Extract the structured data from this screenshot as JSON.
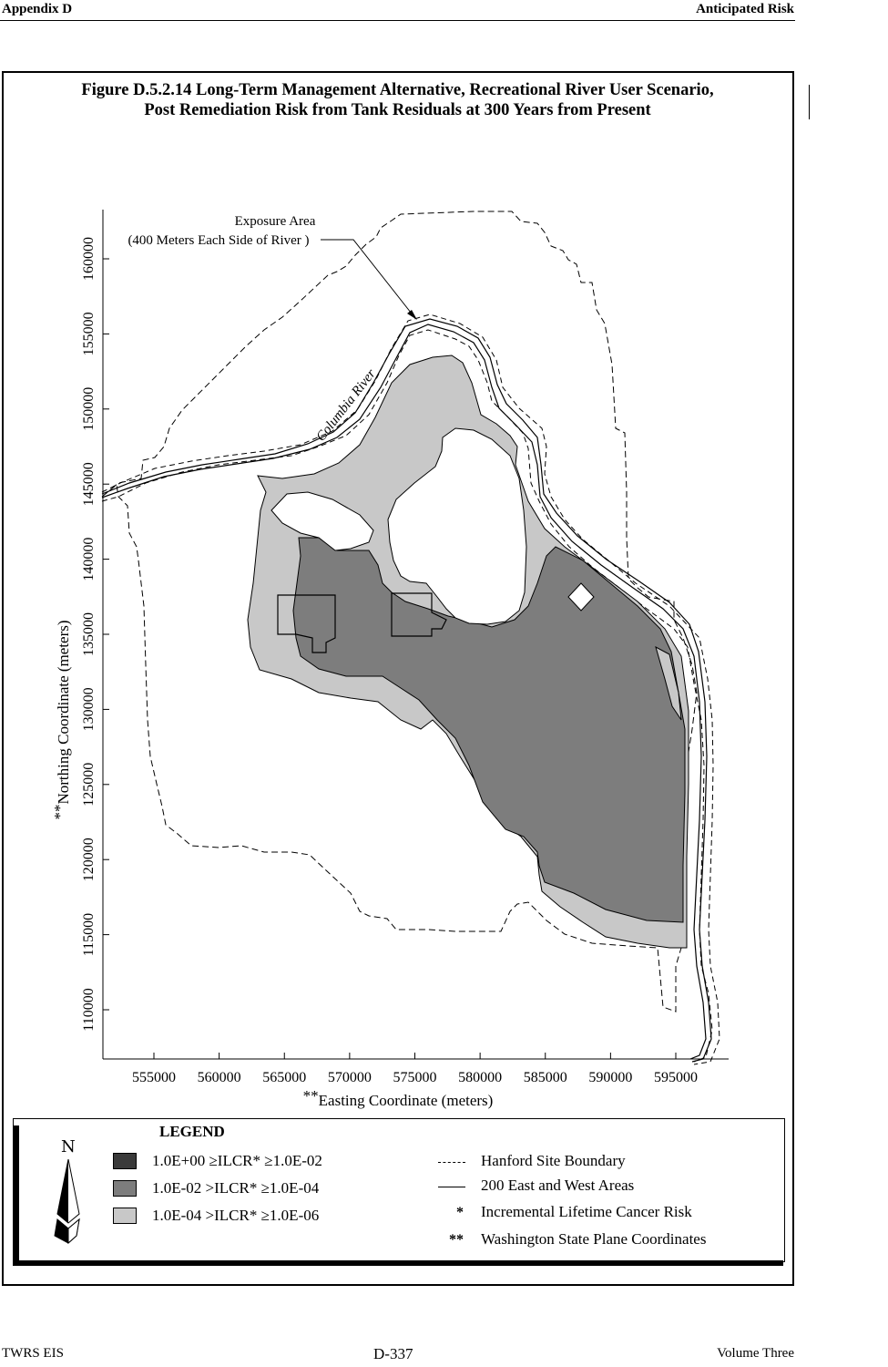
{
  "header": {
    "left": "Appendix D",
    "right": "Anticipated Risk"
  },
  "figure": {
    "title_line1": "Figure D.5.2.14  Long-Term Management Alternative, Recreational River User Scenario,",
    "title_line2": "Post Remediation Risk from Tank Residuals at 300 Years from Present"
  },
  "map": {
    "exposure_label_1": "Exposure Area",
    "exposure_label_2": "(400 Meters Each Side of River )",
    "river_label": "Columbia River",
    "x_axis_label": "Easting Coordinate (meters)",
    "x_axis_marker": "**",
    "y_axis_label": "Northing Coordinate (meters)",
    "y_axis_marker": "**",
    "x_ticks": [
      "555000",
      "560000",
      "565000",
      "570000",
      "575000",
      "580000",
      "585000",
      "590000",
      "595000"
    ],
    "y_ticks": [
      "110000",
      "115000",
      "120000",
      "125000",
      "130000",
      "135000",
      "140000",
      "145000",
      "150000",
      "155000",
      "160000"
    ]
  },
  "legend": {
    "title": "LEGEND",
    "north_symbol": "N",
    "risk_classes": [
      {
        "text": "1.0E+00  ≥ILCR*  ≥1.0E-02",
        "color": "#3a3a3a"
      },
      {
        "text": "1.0E-02  >ILCR*  ≥1.0E-04",
        "color": "#7d7d7d"
      },
      {
        "text": "1.0E-04  >ILCR*  ≥1.0E-06",
        "color": "#c8c8c8"
      }
    ],
    "line_items": [
      {
        "text": "Hanford Site Boundary",
        "style": "dashed"
      },
      {
        "text": "200 East and West Areas",
        "style": "solid"
      }
    ],
    "notes": [
      {
        "symbol": "*",
        "text": "Incremental Lifetime Cancer Risk"
      },
      {
        "symbol": "**",
        "text": "Washington State Plane Coordinates"
      }
    ]
  },
  "footer": {
    "left": "TWRS EIS",
    "center": "D-337",
    "right": "Volume Three"
  }
}
